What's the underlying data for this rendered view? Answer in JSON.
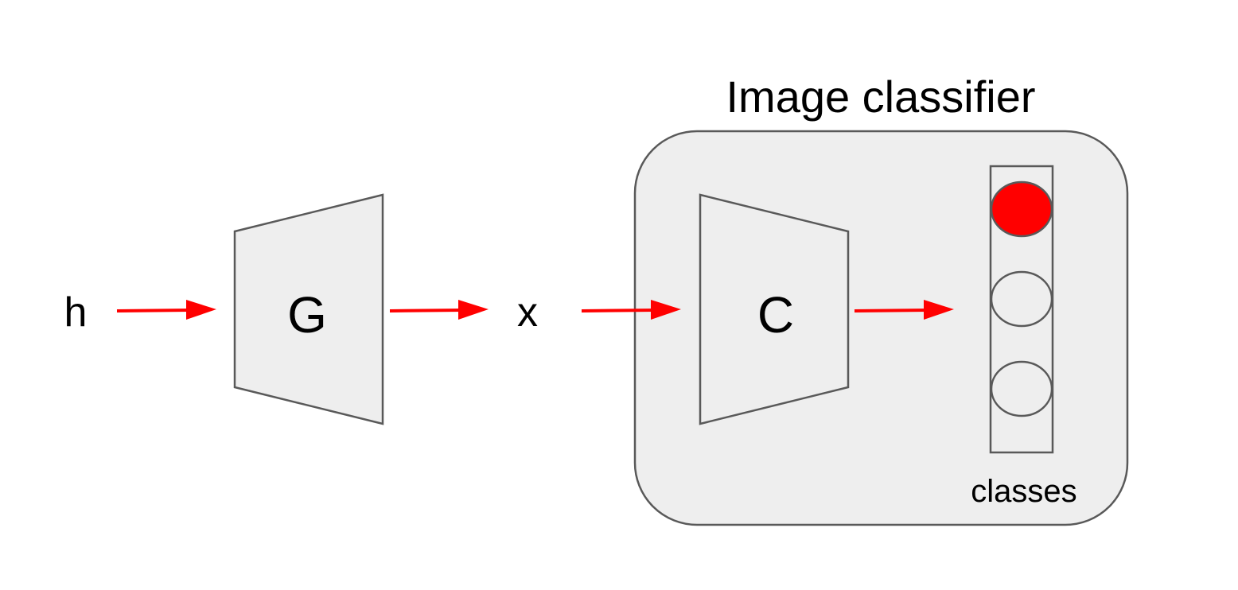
{
  "diagram": {
    "title": "Image classifier",
    "input_label": "h",
    "generator_label": "G",
    "intermediate_label": "x",
    "classifier_label": "C",
    "output_label": "classes",
    "class_nodes": [
      {
        "active": true
      },
      {
        "active": false
      },
      {
        "active": false
      }
    ],
    "colors": {
      "arrow": "#ff0000",
      "active_node": "#ff0000",
      "block_fill": "#eeeeee",
      "stroke": "#595959"
    }
  }
}
